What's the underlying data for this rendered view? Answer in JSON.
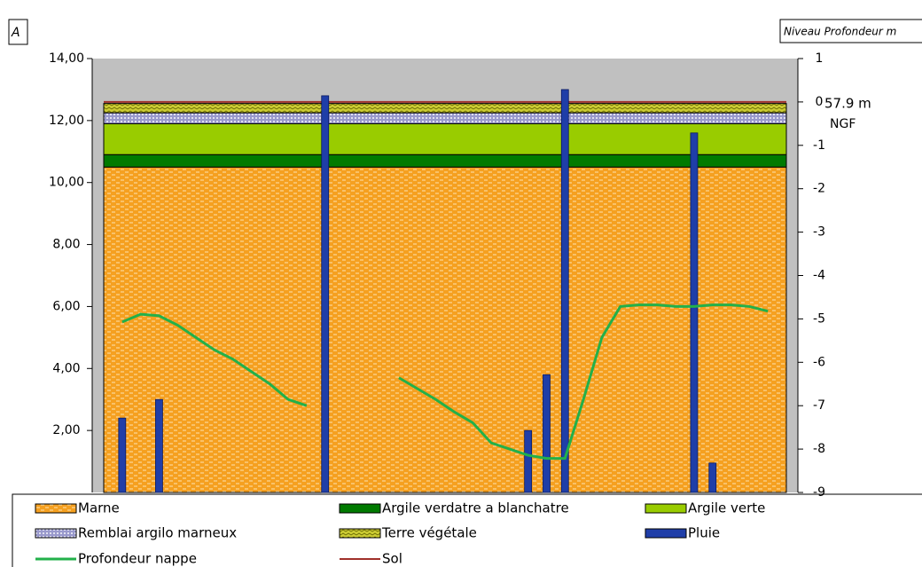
{
  "chart_data": {
    "type": "mixed",
    "panel_label": "A",
    "right_header": "Niveau Profondeur m",
    "annotation": [
      "57.9 m",
      "NGF"
    ],
    "categories": [
      null,
      null,
      null,
      null,
      null,
      null,
      null,
      null,
      null,
      null,
      null,
      null,
      null,
      null,
      null,
      null,
      null,
      null,
      null,
      null,
      null,
      null,
      null,
      null,
      null,
      null,
      null,
      null,
      null,
      null,
      null,
      null,
      null,
      null,
      null,
      null
    ],
    "ylim": [
      0,
      14
    ],
    "yticks": [
      {
        "value": 2,
        "label": "2,00"
      },
      {
        "value": 4,
        "label": "4,00"
      },
      {
        "value": 6,
        "label": "6,00"
      },
      {
        "value": 8,
        "label": "8,00"
      },
      {
        "value": 10,
        "label": "10,00"
      },
      {
        "value": 12,
        "label": "12,00"
      },
      {
        "value": 14,
        "label": "14,00"
      }
    ],
    "y2lim": [
      -9,
      1
    ],
    "y2ticks": [
      1,
      0,
      -1,
      -2,
      -3,
      -4,
      -5,
      -6,
      -7,
      -8,
      -9
    ],
    "series": [
      {
        "name": "Marne",
        "type": "area",
        "color": "#f5a020",
        "values": [
          10.5,
          10.5,
          10.5,
          10.5,
          10.5,
          10.5,
          10.5,
          10.5,
          10.5,
          10.5,
          10.5,
          10.5,
          10.5,
          10.5,
          10.5,
          10.5,
          10.5,
          10.5,
          10.5,
          10.5,
          10.5,
          10.5,
          10.5,
          10.5,
          10.5,
          10.5,
          10.5,
          10.5,
          10.5,
          10.5,
          10.5,
          10.5,
          10.5,
          10.5,
          10.5,
          10.5
        ]
      },
      {
        "name": "Argile verdatre a blanchatre",
        "type": "area",
        "color": "#007a00",
        "values": [
          0.4,
          0.4,
          0.4,
          0.4,
          0.4,
          0.4,
          0.4,
          0.4,
          0.4,
          0.4,
          0.4,
          0.4,
          0.4,
          0.4,
          0.4,
          0.4,
          0.4,
          0.4,
          0.4,
          0.4,
          0.4,
          0.4,
          0.4,
          0.4,
          0.4,
          0.4,
          0.4,
          0.4,
          0.4,
          0.4,
          0.4,
          0.4,
          0.4,
          0.4,
          0.4,
          0.4
        ]
      },
      {
        "name": "Argile verte",
        "type": "area",
        "color": "#99cc00",
        "values": [
          1.0,
          1.0,
          1.0,
          1.0,
          1.0,
          1.0,
          1.0,
          1.0,
          1.0,
          1.0,
          1.0,
          1.0,
          1.0,
          1.0,
          1.0,
          1.0,
          1.0,
          1.0,
          1.0,
          1.0,
          1.0,
          1.0,
          1.0,
          1.0,
          1.0,
          1.0,
          1.0,
          1.0,
          1.0,
          1.0,
          1.0,
          1.0,
          1.0,
          1.0,
          1.0,
          1.0
        ]
      },
      {
        "name": "Remblai argilo marneux",
        "type": "area",
        "color": "#9999cc",
        "values": [
          0.35,
          0.35,
          0.35,
          0.35,
          0.35,
          0.35,
          0.35,
          0.35,
          0.35,
          0.35,
          0.35,
          0.35,
          0.35,
          0.35,
          0.35,
          0.35,
          0.35,
          0.35,
          0.35,
          0.35,
          0.35,
          0.35,
          0.35,
          0.35,
          0.35,
          0.35,
          0.35,
          0.35,
          0.35,
          0.35,
          0.35,
          0.35,
          0.35,
          0.35,
          0.35,
          0.35
        ]
      },
      {
        "name": "Terre végétale",
        "type": "area",
        "color": "#cccc33",
        "values": [
          0.3,
          0.3,
          0.3,
          0.3,
          0.3,
          0.3,
          0.3,
          0.3,
          0.3,
          0.3,
          0.3,
          0.3,
          0.3,
          0.3,
          0.3,
          0.3,
          0.3,
          0.3,
          0.3,
          0.3,
          0.3,
          0.3,
          0.3,
          0.3,
          0.3,
          0.3,
          0.3,
          0.3,
          0.3,
          0.3,
          0.3,
          0.3,
          0.3,
          0.3,
          0.3,
          0.3
        ]
      },
      {
        "name": "Pluie",
        "type": "bar",
        "color": "#1f3ea8",
        "values": [
          2.4,
          null,
          3.0,
          null,
          null,
          null,
          null,
          null,
          null,
          null,
          null,
          12.8,
          null,
          null,
          null,
          null,
          null,
          null,
          null,
          null,
          null,
          null,
          2.0,
          3.8,
          13.0,
          null,
          null,
          null,
          null,
          null,
          null,
          11.6,
          0.95,
          null,
          null,
          null
        ]
      },
      {
        "name": "Profondeur nappe",
        "type": "line",
        "color": "#22b04a",
        "values": [
          5.5,
          5.75,
          5.7,
          5.4,
          5.0,
          4.6,
          4.3,
          3.9,
          3.5,
          3.0,
          2.8,
          null,
          null,
          null,
          null,
          3.7,
          3.35,
          3.0,
          2.6,
          2.25,
          1.6,
          1.4,
          1.2,
          1.1,
          1.1,
          3.0,
          5.0,
          6.0,
          6.05,
          6.05,
          6.0,
          6.0,
          6.05,
          6.05,
          6.0,
          5.85
        ]
      },
      {
        "name": "Sol",
        "type": "level",
        "color": "#a0302a",
        "values": [
          12.6,
          12.6,
          12.6,
          12.6,
          12.6,
          12.6,
          12.6,
          12.6,
          12.6,
          12.6,
          12.6,
          12.6,
          12.6,
          12.6,
          12.6,
          12.6,
          12.6,
          12.6,
          12.6,
          12.6,
          12.6,
          12.6,
          12.6,
          12.6,
          12.6,
          12.6,
          12.6,
          12.6,
          12.6,
          12.6,
          12.6,
          12.6,
          12.6,
          12.6,
          12.6,
          12.6
        ]
      }
    ]
  }
}
